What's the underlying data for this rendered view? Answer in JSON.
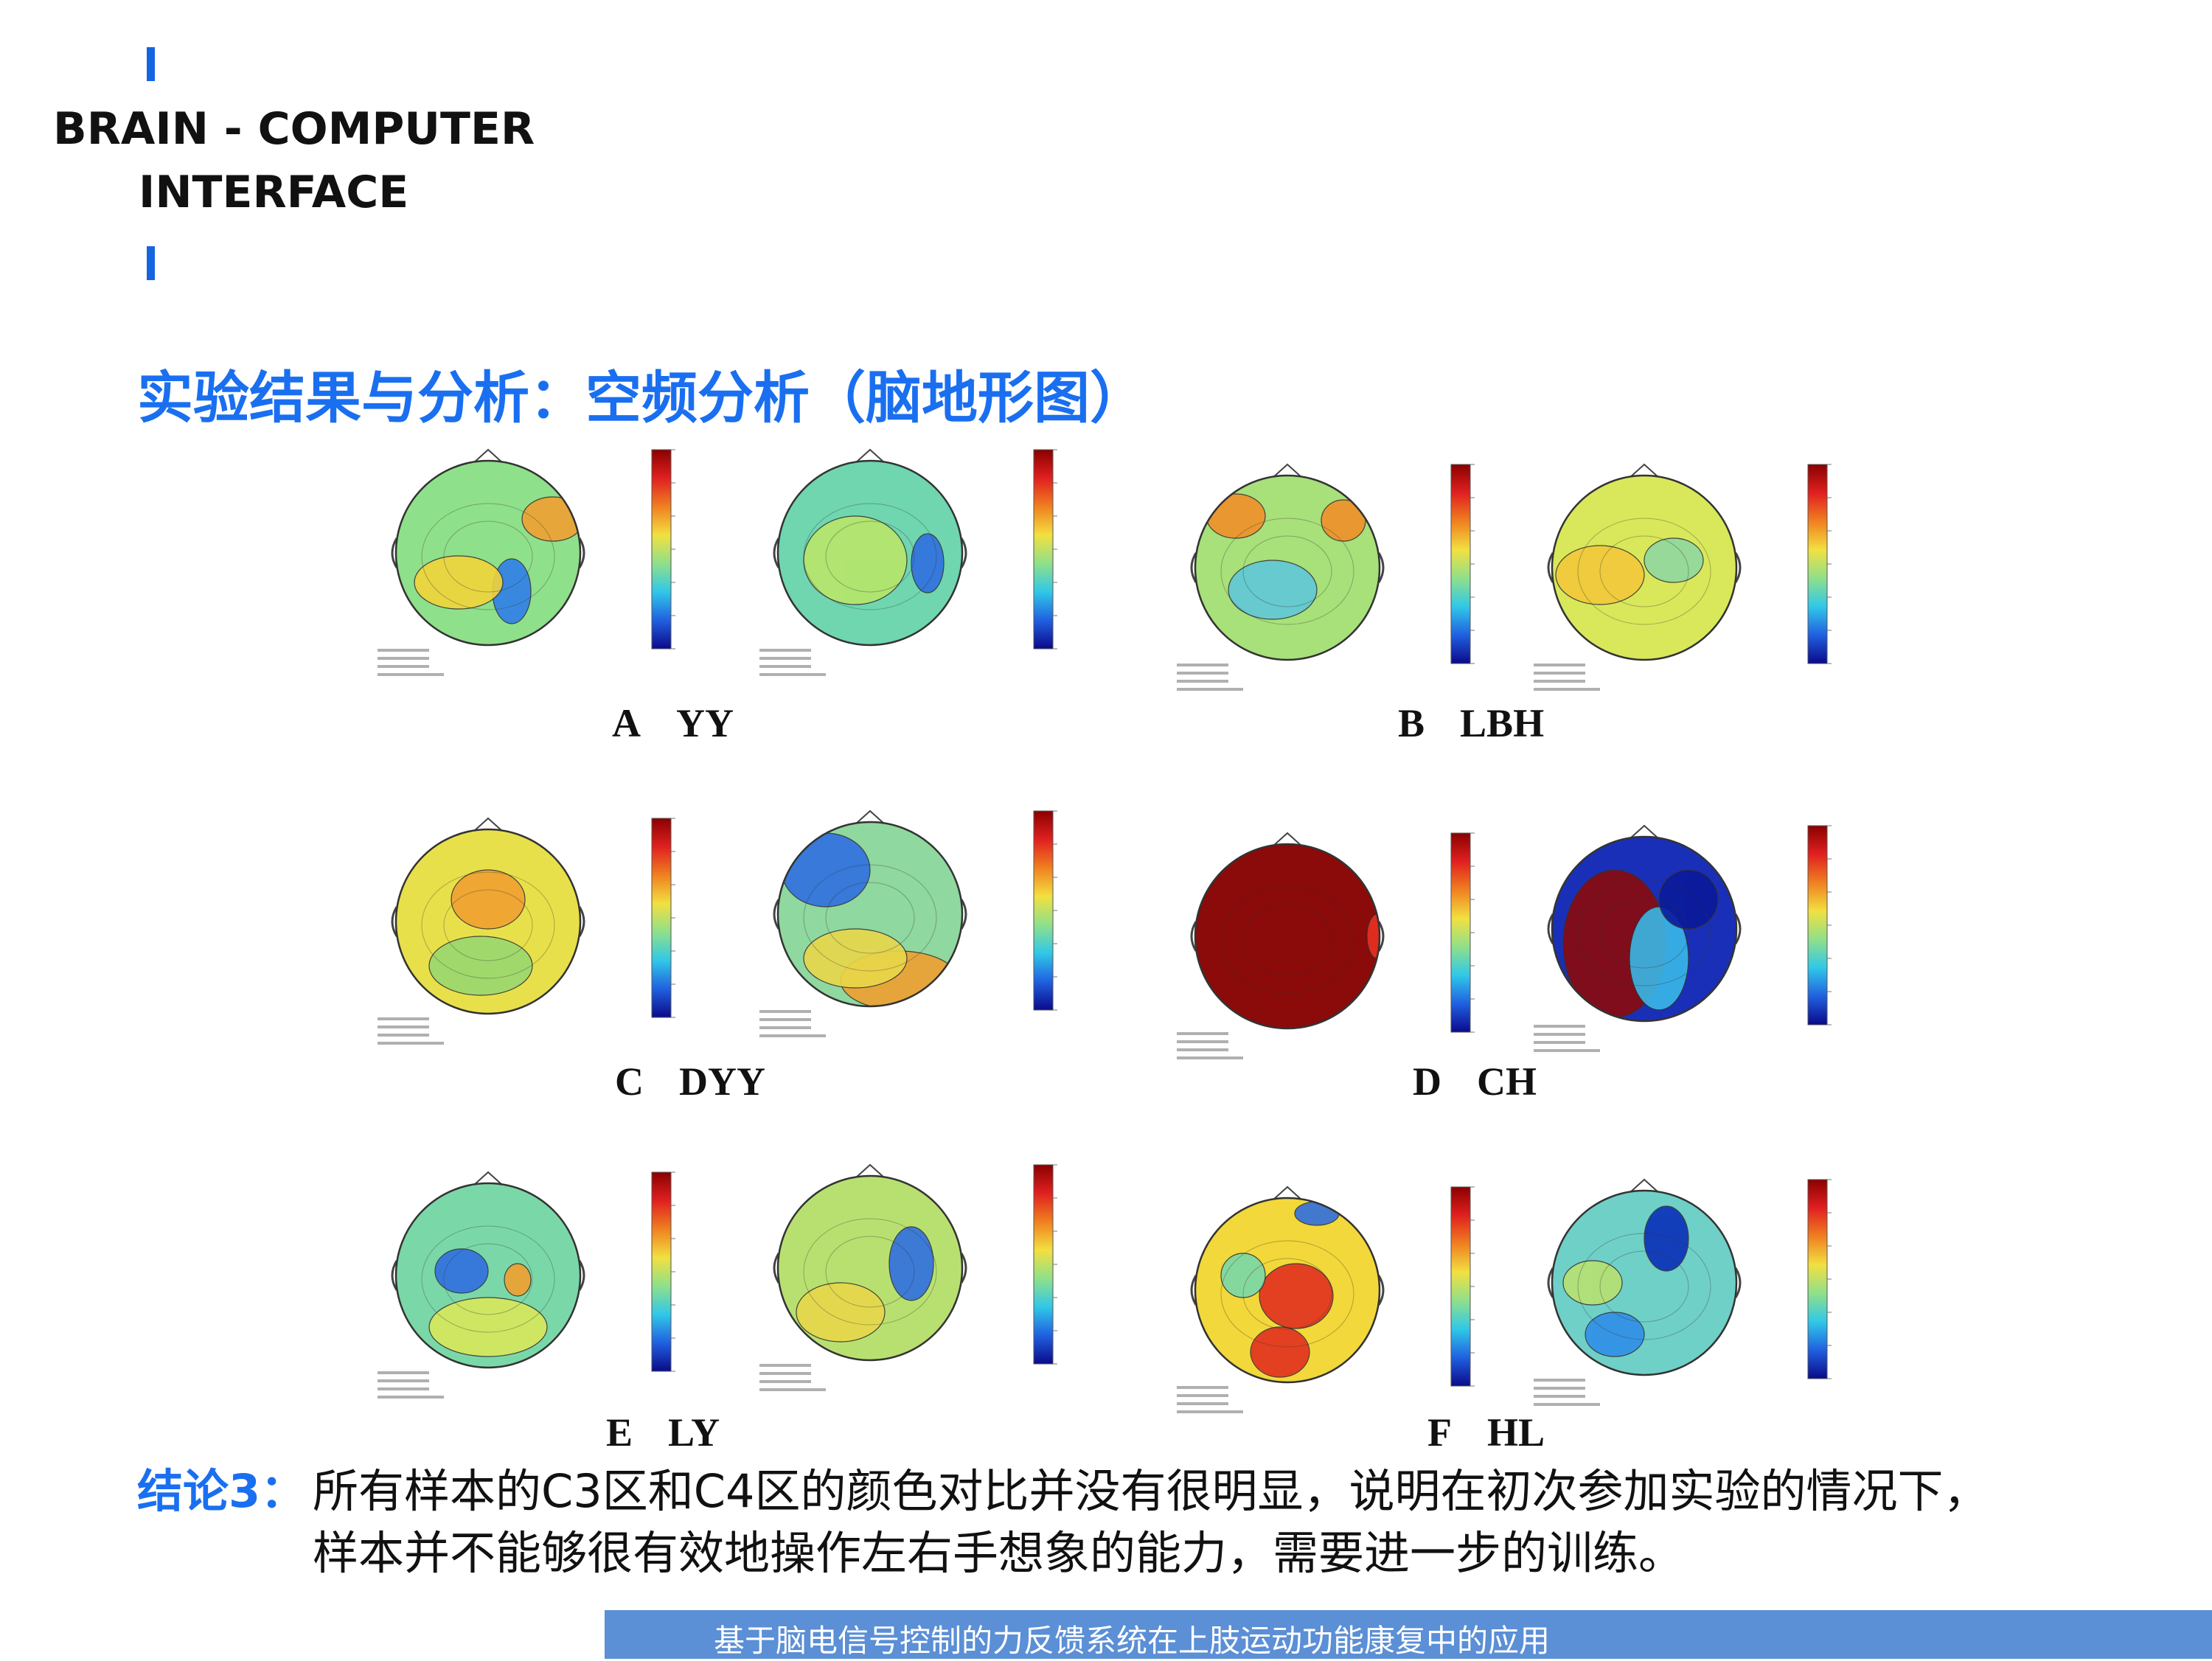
{
  "header": {
    "brand_line1": "BRAIN - COMPUTER",
    "brand_line2": "INTERFACE",
    "accent_color": "#1565e0"
  },
  "title": "实验结果与分析：空频分析（脑地形图）",
  "panels": [
    {
      "letter": "A",
      "name": "YY"
    },
    {
      "letter": "B",
      "name": "LBH"
    },
    {
      "letter": "C",
      "name": "DYY"
    },
    {
      "letter": "D",
      "name": "CH"
    },
    {
      "letter": "E",
      "name": "LY"
    },
    {
      "letter": "F",
      "name": "HL"
    }
  ],
  "topomaps": [
    {
      "panel": "A",
      "side": "left",
      "background": "#8fe08a",
      "blobs": [
        {
          "color": "#f0a030"
        },
        {
          "color": "#2f7fe8"
        },
        {
          "color": "#f2d43a"
        }
      ]
    },
    {
      "panel": "A",
      "side": "right",
      "background": "#6fd6b0",
      "blobs": [
        {
          "color": "#2f6fe0"
        },
        {
          "color": "#b8e66a"
        }
      ]
    },
    {
      "panel": "B",
      "side": "left",
      "background": "#a8e07a",
      "blobs": [
        {
          "color": "#f0902a"
        },
        {
          "color": "#f0902a"
        },
        {
          "color": "#5fc8d8"
        }
      ]
    },
    {
      "panel": "B",
      "side": "right",
      "background": "#d8e85a",
      "blobs": [
        {
          "color": "#f2c83a"
        },
        {
          "color": "#8fd8a0"
        }
      ]
    },
    {
      "panel": "C",
      "side": "left",
      "background": "#e8e04a",
      "blobs": [
        {
          "color": "#f0a030"
        },
        {
          "color": "#9ad870"
        }
      ]
    },
    {
      "panel": "C",
      "side": "right",
      "background": "#8fd8a0",
      "blobs": [
        {
          "color": "#2f6fe0"
        },
        {
          "color": "#f0a030"
        },
        {
          "color": "#e8d84a"
        }
      ]
    },
    {
      "panel": "D",
      "side": "left",
      "background": "#8b0a0a",
      "blobs": [
        {
          "color": "#e83020"
        }
      ]
    },
    {
      "panel": "D",
      "side": "right",
      "background": "#1a2fb8",
      "blobs": [
        {
          "color": "#8b0a0a"
        },
        {
          "color": "#3ab8e8"
        },
        {
          "color": "#0a1a9a"
        }
      ]
    },
    {
      "panel": "E",
      "side": "left",
      "background": "#7ad8a8",
      "blobs": [
        {
          "color": "#2f6fe0"
        },
        {
          "color": "#f0a030"
        },
        {
          "color": "#d8e85a"
        }
      ]
    },
    {
      "panel": "E",
      "side": "right",
      "background": "#b8e070",
      "blobs": [
        {
          "color": "#2f6fe0"
        },
        {
          "color": "#e8d84a"
        }
      ]
    },
    {
      "panel": "F",
      "side": "left",
      "background": "#f2d83a",
      "blobs": [
        {
          "color": "#e03020"
        },
        {
          "color": "#e03020"
        },
        {
          "color": "#2f6fe0"
        },
        {
          "color": "#7ad8a8"
        }
      ]
    },
    {
      "panel": "F",
      "side": "right",
      "background": "#6fd0c8",
      "blobs": [
        {
          "color": "#0a2fb8"
        },
        {
          "color": "#2f8fe8"
        },
        {
          "color": "#b8e070"
        }
      ]
    }
  ],
  "conclusion": {
    "label": "结论3：",
    "line1": "所有样本的C3区和C4区的颜色对比并没有很明显，说明在初次参加实验的情况下，",
    "line2": "样本并不能够很有效地操作左右手想象的能力，需要进一步的训练。"
  },
  "footer": {
    "text": "基于脑电信号控制的力反馈系统在上肢运动功能康复中的应用",
    "background": "#5b8fd6"
  }
}
